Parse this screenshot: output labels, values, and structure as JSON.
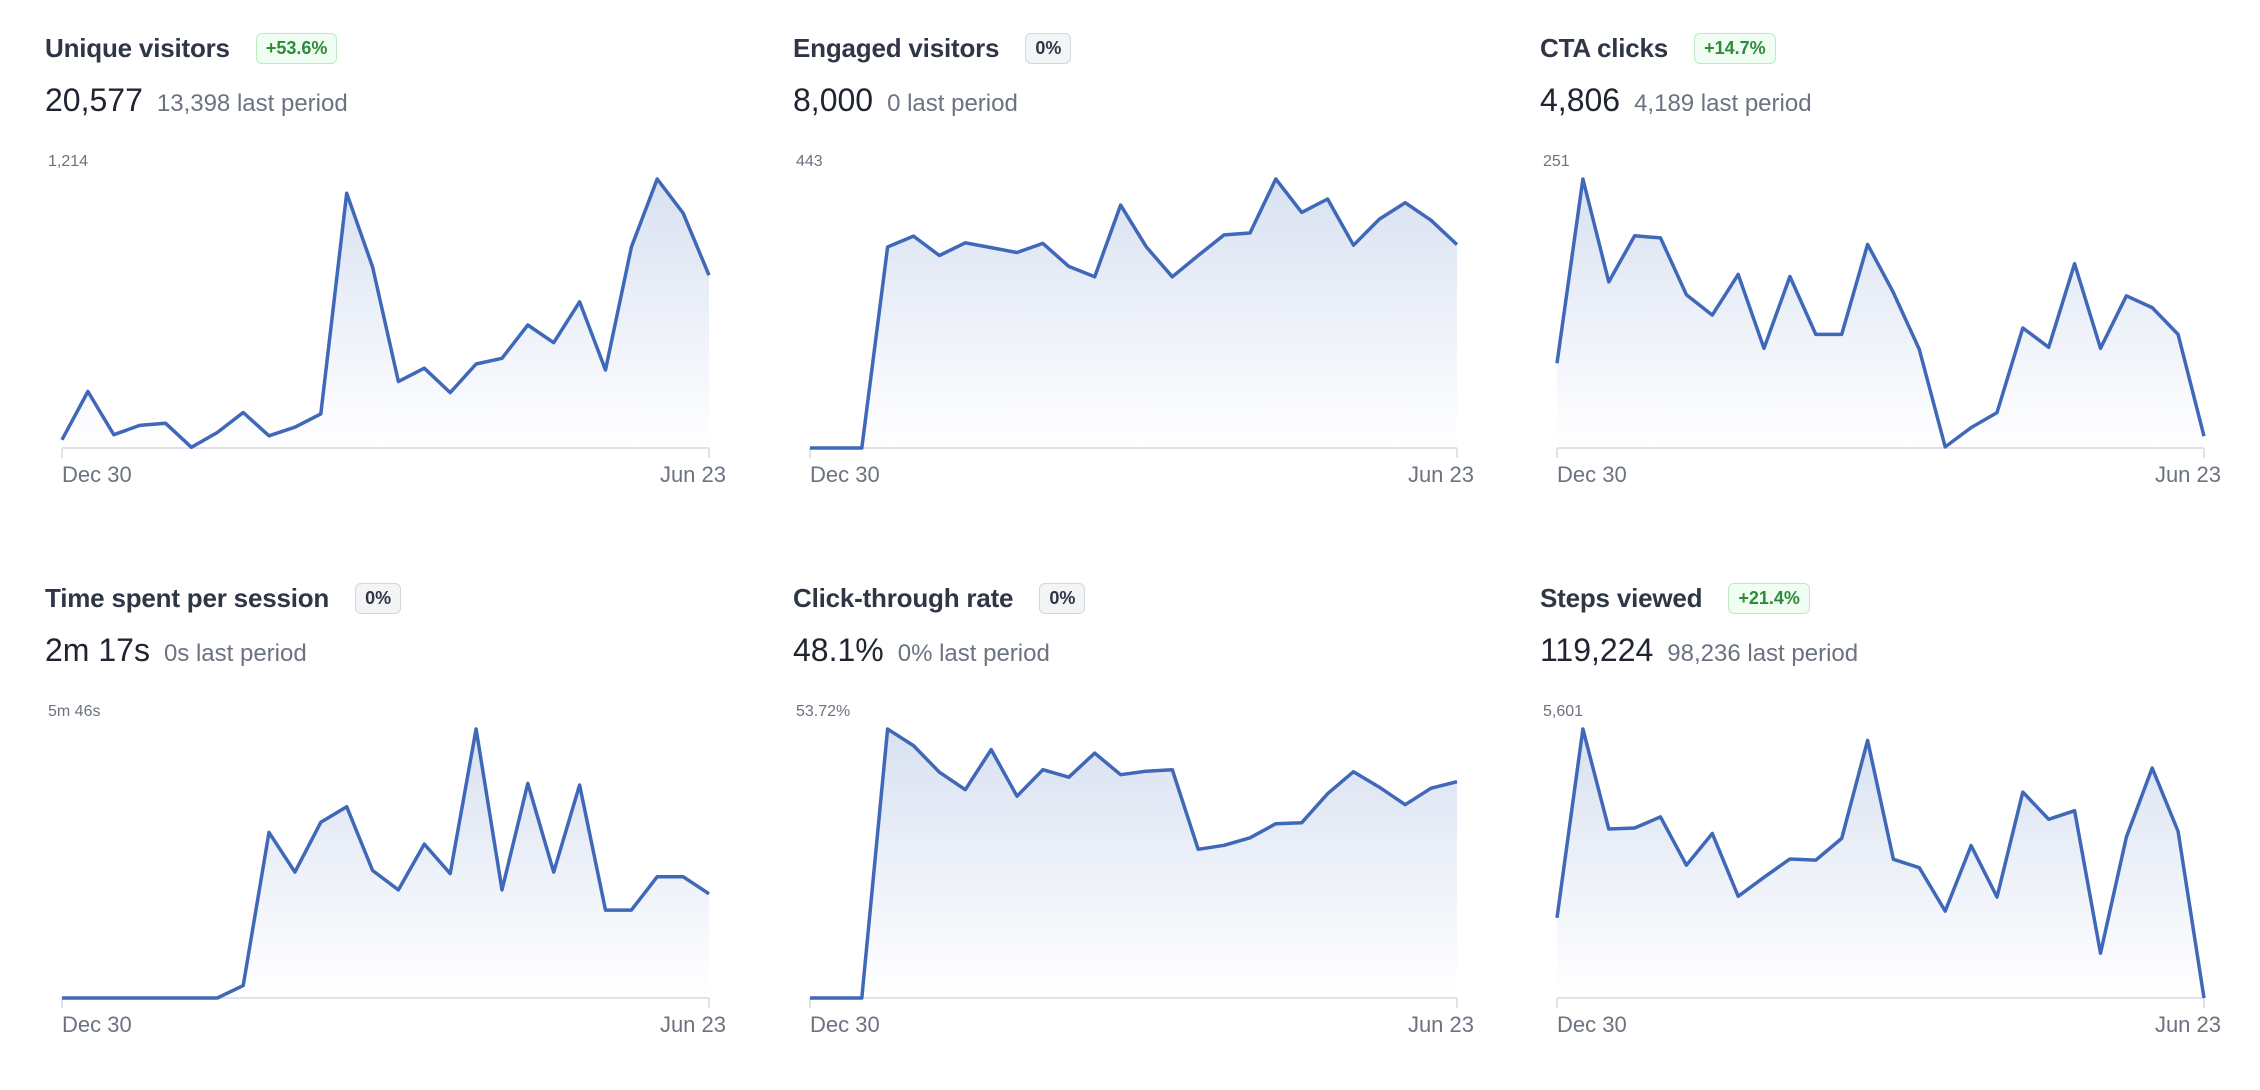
{
  "style": {
    "line_color": "#3f68b9",
    "fill_color": "#3f68b9",
    "badge_up_color": "#2f8a3a"
  },
  "x_ticks": [
    "Dec 30",
    "Jun 23"
  ],
  "metrics": [
    {
      "title": "Unique visitors",
      "badge": "+53.6%",
      "badge_type": "up",
      "value": "20,577",
      "previous": "13,398 last period",
      "max_label": "1,214",
      "ymax": 1214,
      "values": [
        37,
        255,
        60,
        102,
        112,
        3,
        70,
        160,
        55,
        94,
        154,
        1150,
        817,
        300,
        360,
        250,
        379,
        405,
        555,
        475,
        660,
        352,
        907,
        1214,
        1060,
        780
      ]
    },
    {
      "title": "Engaged visitors",
      "badge": "0%",
      "badge_type": "flat",
      "value": "8,000",
      "previous": "0 last period",
      "max_label": "443",
      "ymax": 443,
      "values": [
        0,
        0,
        0,
        331,
        349,
        317,
        338,
        330,
        322,
        337,
        299,
        282,
        400,
        331,
        282,
        317,
        351,
        354,
        443,
        388,
        410,
        334,
        377,
        404,
        375,
        335
      ]
    },
    {
      "title": "CTA clicks",
      "badge": "+14.7%",
      "badge_type": "up",
      "value": "4,806",
      "previous": "4,189 last period",
      "max_label": "251",
      "ymax": 251,
      "values": [
        79,
        251,
        155,
        198,
        196,
        143,
        124,
        162,
        93,
        160,
        106,
        106,
        190,
        145,
        92,
        1,
        19,
        33,
        112,
        94,
        172,
        93,
        142,
        131,
        106,
        11
      ]
    },
    {
      "title": "Time spent per session",
      "badge": "0%",
      "badge_type": "flat",
      "value": "2m 17s",
      "previous": "0s last period",
      "max_label": "5m 46s",
      "ymax": 346,
      "values": [
        0,
        0,
        0,
        0,
        0,
        0,
        0,
        16,
        213,
        162,
        226,
        246,
        164,
        139,
        198,
        160,
        346,
        139,
        276,
        162,
        274,
        113,
        113,
        156,
        156,
        134
      ]
    },
    {
      "title": "Click-through rate",
      "badge": "0%",
      "badge_type": "flat",
      "value": "48.1%",
      "previous": "0% last period",
      "max_label": "53.72%",
      "ymax": 53.72,
      "values": [
        0,
        0,
        0,
        53.72,
        50.4,
        45.1,
        41.6,
        49.6,
        40.3,
        45.6,
        44.1,
        48.9,
        44.6,
        45.3,
        45.6,
        29.7,
        30.5,
        32.0,
        34.8,
        35.0,
        40.8,
        45.2,
        42.1,
        38.6,
        41.9,
        43.2
      ]
    },
    {
      "title": "Steps viewed",
      "badge": "+21.4%",
      "badge_type": "up",
      "value": "119,224",
      "previous": "98,236 last period",
      "max_label": "5,601",
      "ymax": 5601,
      "values": [
        1673,
        5601,
        3519,
        3540,
        3770,
        2765,
        3425,
        2118,
        2513,
        2894,
        2872,
        3324,
        5364,
        2887,
        2714,
        1809,
        3174,
        2104,
        4287,
        3720,
        3899,
        933,
        3353,
        4790,
        3468,
        0
      ]
    }
  ],
  "chart_data": [
    {
      "type": "area",
      "title": "Unique visitors",
      "x_ticks": [
        "Dec 30",
        "Jun 23"
      ],
      "ylim": [
        0,
        1214
      ],
      "values": [
        37,
        255,
        60,
        102,
        112,
        3,
        70,
        160,
        55,
        94,
        154,
        1150,
        817,
        300,
        360,
        250,
        379,
        405,
        555,
        475,
        660,
        352,
        907,
        1214,
        1060,
        780
      ]
    },
    {
      "type": "area",
      "title": "Engaged visitors",
      "x_ticks": [
        "Dec 30",
        "Jun 23"
      ],
      "ylim": [
        0,
        443
      ],
      "values": [
        0,
        0,
        0,
        331,
        349,
        317,
        338,
        330,
        322,
        337,
        299,
        282,
        400,
        331,
        282,
        317,
        351,
        354,
        443,
        388,
        410,
        334,
        377,
        404,
        375,
        335
      ]
    },
    {
      "type": "area",
      "title": "CTA clicks",
      "x_ticks": [
        "Dec 30",
        "Jun 23"
      ],
      "ylim": [
        0,
        251
      ],
      "values": [
        79,
        251,
        155,
        198,
        196,
        143,
        124,
        162,
        93,
        160,
        106,
        106,
        190,
        145,
        92,
        1,
        19,
        33,
        112,
        94,
        172,
        93,
        142,
        131,
        106,
        11
      ]
    },
    {
      "type": "area",
      "title": "Time spent per session",
      "x_ticks": [
        "Dec 30",
        "Jun 23"
      ],
      "ylim": [
        0,
        346
      ],
      "values": [
        0,
        0,
        0,
        0,
        0,
        0,
        0,
        16,
        213,
        162,
        226,
        246,
        164,
        139,
        198,
        160,
        346,
        139,
        276,
        162,
        274,
        113,
        113,
        156,
        156,
        134
      ]
    },
    {
      "type": "area",
      "title": "Click-through rate",
      "x_ticks": [
        "Dec 30",
        "Jun 23"
      ],
      "ylim": [
        0,
        53.72
      ],
      "values": [
        0,
        0,
        0,
        53.72,
        50.4,
        45.1,
        41.6,
        49.6,
        40.3,
        45.6,
        44.1,
        48.9,
        44.6,
        45.3,
        45.6,
        29.7,
        30.5,
        32.0,
        34.8,
        35.0,
        40.8,
        45.2,
        42.1,
        38.6,
        41.9,
        43.2
      ]
    },
    {
      "type": "area",
      "title": "Steps viewed",
      "x_ticks": [
        "Dec 30",
        "Jun 23"
      ],
      "ylim": [
        0,
        5601
      ],
      "values": [
        1673,
        5601,
        3519,
        3540,
        3770,
        2765,
        3425,
        2118,
        2513,
        2894,
        2872,
        3324,
        5364,
        2887,
        2714,
        1809,
        3174,
        2104,
        4287,
        3720,
        3899,
        933,
        3353,
        4790,
        3468,
        0
      ]
    }
  ]
}
